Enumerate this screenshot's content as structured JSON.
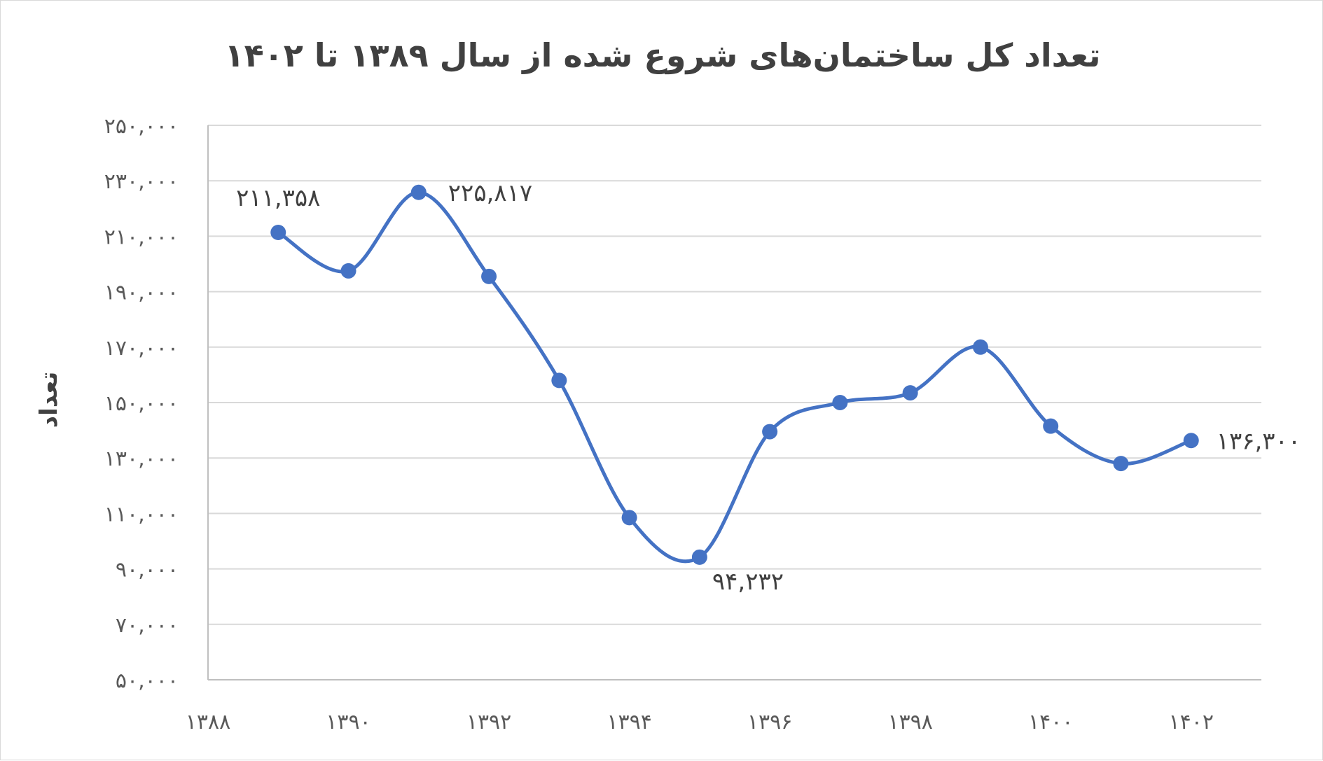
{
  "chart_data": {
    "type": "line",
    "title": "تعداد کل ساختمان‌های شروع شده از سال ۱۳۸۹ تا ۱۴۰۲",
    "xlabel": "",
    "ylabel": "تعداد",
    "x": [
      1389,
      1390,
      1391,
      1392,
      1393,
      1394,
      1395,
      1396,
      1397,
      1398,
      1399,
      1400,
      1401,
      1402
    ],
    "series": [
      {
        "values": [
          211358,
          197500,
          225817,
          195500,
          158000,
          108500,
          94232,
          139500,
          150000,
          153500,
          170000,
          141500,
          128000,
          136300
        ]
      }
    ],
    "xlim": [
      1388,
      1403
    ],
    "ylim": [
      50000,
      250000
    ],
    "y_ticks": [
      50000,
      70000,
      90000,
      110000,
      130000,
      150000,
      170000,
      190000,
      210000,
      230000,
      250000
    ],
    "y_tick_labels": [
      "۵۰,۰۰۰",
      "۷۰,۰۰۰",
      "۹۰,۰۰۰",
      "۱۱۰,۰۰۰",
      "۱۳۰,۰۰۰",
      "۱۵۰,۰۰۰",
      "۱۷۰,۰۰۰",
      "۱۹۰,۰۰۰",
      "۲۱۰,۰۰۰",
      "۲۳۰,۰۰۰",
      "۲۵۰,۰۰۰"
    ],
    "x_ticks": [
      1388,
      1390,
      1392,
      1394,
      1396,
      1398,
      1400,
      1402
    ],
    "x_tick_labels": [
      "۱۳۸۸",
      "۱۳۹۰",
      "۱۳۹۲",
      "۱۳۹۴",
      "۱۳۹۶",
      "۱۳۹۸",
      "۱۴۰۰",
      "۱۴۰۲"
    ],
    "data_labels": [
      {
        "x": 1389,
        "text": "۲۱۱,۳۵۸"
      },
      {
        "x": 1391,
        "text": "۲۲۵,۸۱۷"
      },
      {
        "x": 1395,
        "text": "۹۴,۲۳۲"
      },
      {
        "x": 1402,
        "text": "۱۳۶,۳۰۰"
      }
    ],
    "grid": true,
    "legend": "none",
    "colors": {
      "line": "#4472c4",
      "grid": "#d9d9d9",
      "axis": "#bfbfbf",
      "text": "#595959",
      "title": "#404040"
    }
  }
}
